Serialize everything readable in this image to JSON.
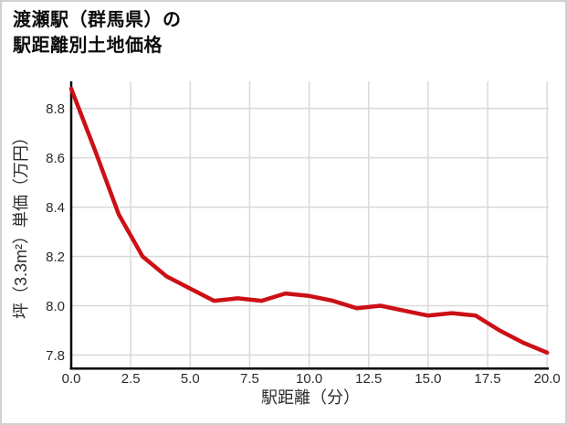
{
  "title": {
    "line1": "渡瀬駅（群馬県）の",
    "line2": "駅距離別土地価格"
  },
  "chart_data": {
    "type": "line",
    "title": "渡瀬駅（群馬県）の駅距離別土地価格",
    "xlabel": "駅距離（分）",
    "ylabel": "坪（3.3m²）単価（万円）",
    "x": [
      0,
      1,
      2,
      3,
      4,
      5,
      6,
      7,
      8,
      9,
      10,
      11,
      12,
      13,
      14,
      15,
      16,
      17,
      18,
      19,
      20
    ],
    "values": [
      8.88,
      8.63,
      8.37,
      8.2,
      8.12,
      8.07,
      8.02,
      8.03,
      8.02,
      8.05,
      8.04,
      8.02,
      7.99,
      8.0,
      7.98,
      7.96,
      7.97,
      7.96,
      7.9,
      7.85,
      7.81
    ],
    "xticks": [
      0.0,
      2.5,
      5.0,
      7.5,
      10.0,
      12.5,
      15.0,
      17.5,
      20.0
    ],
    "xtick_labels": [
      "0.0",
      "2.5",
      "5.0",
      "7.5",
      "10.0",
      "12.5",
      "15.0",
      "17.5",
      "20.0"
    ],
    "yticks": [
      7.8,
      8.0,
      8.2,
      8.4,
      8.6,
      8.8
    ],
    "ytick_labels": [
      "7.8",
      "8.0",
      "8.2",
      "8.4",
      "8.6",
      "8.8"
    ],
    "xlim": [
      0,
      20.07
    ],
    "ylim": [
      7.75,
      8.91
    ],
    "grid": true,
    "legend": false,
    "line_color": "#cc1016"
  },
  "colors": {
    "line": "#cc1016",
    "grid": "#d9d9d9",
    "spine": "#000000",
    "tick_text": "#2b2b2b",
    "title_text": "#0d0d0d",
    "page_border": "#d0d0d0",
    "background": "#ffffff"
  }
}
